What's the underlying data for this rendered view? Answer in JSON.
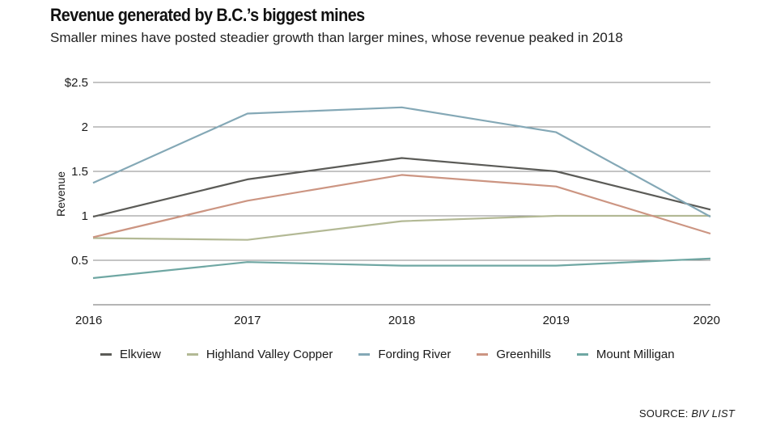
{
  "header": {
    "title": "Revenue generated by B.C.’s biggest mines",
    "subtitle": "Smaller mines have posted steadier growth than larger mines, whose revenue peaked in 2018"
  },
  "source": {
    "prefix": "SOURCE: ",
    "name": "BIV LIST"
  },
  "chart_data": {
    "type": "line",
    "ylabel": "Revenue",
    "x": [
      "2016",
      "2017",
      "2018",
      "2019",
      "2020"
    ],
    "ylim": [
      0,
      2.5
    ],
    "yticks": [
      {
        "value": 0.5,
        "label": "0.5"
      },
      {
        "value": 1,
        "label": "1"
      },
      {
        "value": 1.5,
        "label": "1.5"
      },
      {
        "value": 2,
        "label": "2"
      },
      {
        "value": 2.5,
        "label": "$2.5"
      }
    ],
    "grid": true,
    "legend_position": "bottom",
    "series": [
      {
        "name": "Elkview",
        "color": "#5b5b57",
        "values": [
          0.99,
          1.41,
          1.65,
          1.5,
          1.07
        ]
      },
      {
        "name": "Highland Valley Copper",
        "color": "#b3b995",
        "values": [
          0.75,
          0.73,
          0.94,
          1.0,
          1.0
        ]
      },
      {
        "name": "Fording River",
        "color": "#84a8b6",
        "values": [
          1.37,
          2.15,
          2.22,
          1.94,
          0.99
        ]
      },
      {
        "name": "Greenhills",
        "color": "#cc9582",
        "values": [
          0.76,
          1.17,
          1.46,
          1.33,
          0.8
        ]
      },
      {
        "name": "Mount Milligan",
        "color": "#6fa7a3",
        "values": [
          0.3,
          0.48,
          0.44,
          0.44,
          0.52
        ]
      }
    ]
  }
}
